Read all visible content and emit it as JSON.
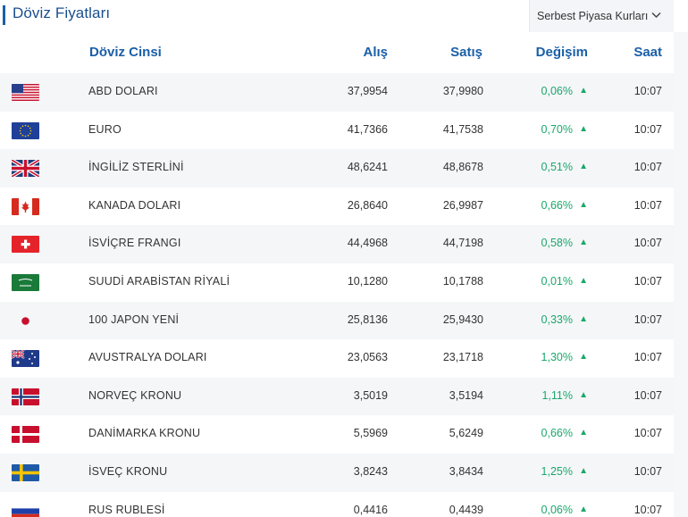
{
  "header": {
    "title": "Döviz Fiyatları",
    "dropdown_label": "Serbest Piyasa Kurları"
  },
  "columns": {
    "name": "Döviz Cinsi",
    "buy": "Alış",
    "sell": "Satış",
    "change": "Değişim",
    "time": "Saat"
  },
  "rows": [
    {
      "name": "ABD DOLARI",
      "buy": "37,9954",
      "sell": "37,9980",
      "change": "0,06%",
      "time": "10:07",
      "flag": "us-flag-icon"
    },
    {
      "name": "EURO",
      "buy": "41,7366",
      "sell": "41,7538",
      "change": "0,70%",
      "time": "10:07",
      "flag": "eu-flag-icon"
    },
    {
      "name": "İNGİLİZ STERLİNİ",
      "buy": "48,6241",
      "sell": "48,8678",
      "change": "0,51%",
      "time": "10:07",
      "flag": "uk-flag-icon"
    },
    {
      "name": "KANADA DOLARI",
      "buy": "26,8640",
      "sell": "26,9987",
      "change": "0,66%",
      "time": "10:07",
      "flag": "ca-flag-icon"
    },
    {
      "name": "İSVİÇRE FRANGI",
      "buy": "44,4968",
      "sell": "44,7198",
      "change": "0,58%",
      "time": "10:07",
      "flag": "ch-flag-icon"
    },
    {
      "name": "SUUDİ ARABİSTAN RİYALİ",
      "buy": "10,1280",
      "sell": "10,1788",
      "change": "0,01%",
      "time": "10:07",
      "flag": "sa-flag-icon"
    },
    {
      "name": "100 JAPON YENİ",
      "buy": "25,8136",
      "sell": "25,9430",
      "change": "0,33%",
      "time": "10:07",
      "flag": "jp-flag-icon"
    },
    {
      "name": "AVUSTRALYA DOLARI",
      "buy": "23,0563",
      "sell": "23,1718",
      "change": "1,30%",
      "time": "10:07",
      "flag": "au-flag-icon"
    },
    {
      "name": "NORVEÇ KRONU",
      "buy": "3,5019",
      "sell": "3,5194",
      "change": "1,11%",
      "time": "10:07",
      "flag": "no-flag-icon"
    },
    {
      "name": "DANİMARKA KRONU",
      "buy": "5,5969",
      "sell": "5,6249",
      "change": "0,66%",
      "time": "10:07",
      "flag": "dk-flag-icon"
    },
    {
      "name": "İSVEÇ KRONU",
      "buy": "3,8243",
      "sell": "3,8434",
      "change": "1,25%",
      "time": "10:07",
      "flag": "se-flag-icon"
    },
    {
      "name": "RUS RUBLESİ",
      "buy": "0,4416",
      "sell": "0,4439",
      "change": "0,06%",
      "time": "10:07",
      "flag": "ru-flag-icon"
    }
  ],
  "colors": {
    "accent": "#1a5fa8",
    "up": "#1aa86b"
  },
  "icons": {
    "up": "▲",
    "chevron": "chevron-down-icon"
  }
}
